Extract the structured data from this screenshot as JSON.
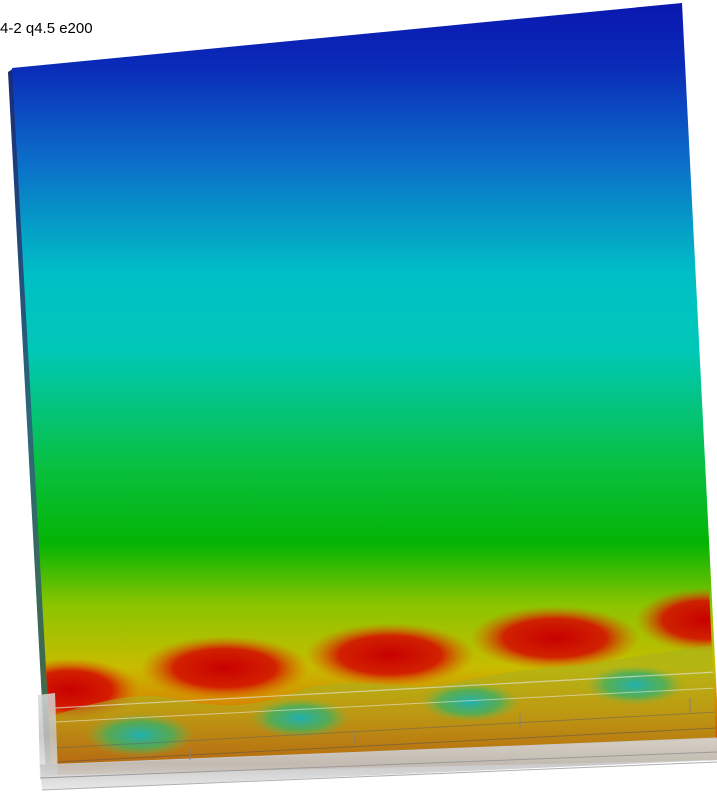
{
  "viewport": {
    "title": "4-2 q4.5 e200"
  },
  "legend_colors": {
    "blue": "#0a1fb4",
    "cyan": "#00c6c8",
    "green": "#04b304",
    "yellow": "#c8c000",
    "red": "#c80000"
  }
}
